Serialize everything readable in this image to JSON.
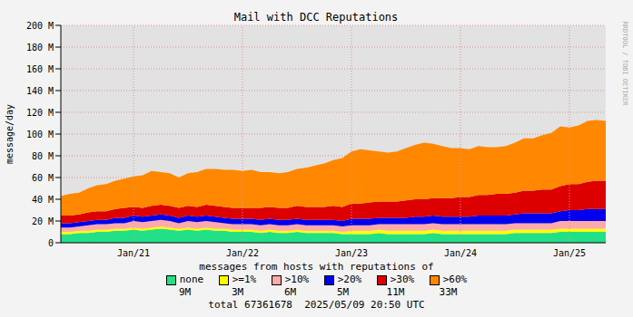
{
  "chart_data": {
    "type": "area",
    "title": "Mail with DCC Reputations",
    "y_label": "message/day",
    "legend_title": "messages from hosts with reputations of",
    "footer": "total 67361678  2025/05/09 20:50 UTC",
    "side_text": "RRDTOOL / TOBI OETIKER",
    "stacked": true,
    "grid": true,
    "legend": "bottom",
    "categories": [
      null,
      null,
      null,
      null,
      null,
      null,
      null,
      null,
      "Jan/21",
      null,
      null,
      null,
      null,
      null,
      null,
      null,
      null,
      null,
      null,
      null,
      "Jan/22",
      null,
      null,
      null,
      null,
      null,
      null,
      null,
      null,
      null,
      null,
      null,
      "Jan/23",
      null,
      null,
      null,
      null,
      null,
      null,
      null,
      null,
      null,
      null,
      null,
      "Jan/24",
      null,
      null,
      null,
      null,
      null,
      null,
      null,
      null,
      null,
      null,
      null,
      "Jan/25",
      null,
      null,
      null,
      null
    ],
    "ylim": [
      0,
      200
    ],
    "yticks": [
      0,
      {
        "value": 20,
        "label": "20 M"
      },
      {
        "value": 40,
        "label": "40 M"
      },
      {
        "value": 60,
        "label": "60 M"
      },
      {
        "value": 80,
        "label": "80 M"
      },
      {
        "value": 100,
        "label": "100 M"
      },
      {
        "value": 120,
        "label": "120 M"
      },
      {
        "value": 140,
        "label": "140 M"
      },
      {
        "value": 160,
        "label": "160 M"
      },
      {
        "value": 180,
        "label": "180 M"
      },
      {
        "value": 200,
        "label": "200 M"
      }
    ],
    "series": [
      {
        "name": "none",
        "color": "#22e088",
        "legend_value": "9M",
        "values": [
          8,
          8,
          9,
          9,
          10,
          10,
          11,
          11,
          12,
          11,
          12,
          13,
          12,
          11,
          12,
          11,
          12,
          11,
          11,
          10,
          10,
          10,
          9,
          10,
          9,
          9,
          10,
          9,
          9,
          9,
          9,
          8,
          8,
          8,
          8,
          9,
          8,
          8,
          8,
          8,
          8,
          9,
          8,
          8,
          8,
          8,
          8,
          8,
          8,
          8,
          9,
          9,
          9,
          9,
          9,
          10,
          10,
          10,
          10,
          10,
          10
        ]
      },
      {
        "name": ">=1%",
        "color": "#ffff00",
        "legend_value": "3M",
        "values": [
          2,
          2,
          2,
          2,
          2,
          2,
          2,
          2,
          2,
          2,
          2,
          2,
          2,
          2,
          2,
          2,
          2,
          2,
          2,
          2,
          2,
          2,
          2,
          2,
          2,
          2,
          2,
          2,
          2,
          2,
          2,
          2,
          3,
          3,
          3,
          3,
          3,
          3,
          3,
          3,
          3,
          3,
          3,
          3,
          3,
          3,
          3,
          3,
          3,
          3,
          3,
          3,
          3,
          3,
          3,
          3,
          3,
          3,
          3,
          3,
          3
        ]
      },
      {
        "name": ">10%",
        "color": "#ffaaaa",
        "legend_value": "6M",
        "values": [
          4,
          4,
          4,
          5,
          5,
          5,
          5,
          5,
          6,
          6,
          6,
          6,
          6,
          5,
          6,
          6,
          6,
          6,
          5,
          5,
          5,
          5,
          5,
          5,
          5,
          5,
          5,
          5,
          5,
          5,
          5,
          5,
          5,
          5,
          5,
          5,
          6,
          6,
          6,
          6,
          6,
          6,
          6,
          6,
          6,
          6,
          6,
          6,
          6,
          6,
          6,
          6,
          6,
          6,
          6,
          7,
          7,
          7,
          7,
          7,
          7
        ]
      },
      {
        "name": ">20%",
        "color": "#0000ee",
        "legend_value": "5M",
        "values": [
          4,
          4,
          4,
          4,
          4,
          4,
          5,
          5,
          5,
          5,
          5,
          5,
          5,
          5,
          5,
          5,
          5,
          5,
          5,
          5,
          5,
          5,
          5,
          5,
          5,
          5,
          5,
          5,
          5,
          5,
          5,
          5,
          6,
          6,
          6,
          6,
          6,
          6,
          6,
          7,
          7,
          7,
          7,
          7,
          7,
          7,
          8,
          8,
          8,
          8,
          8,
          9,
          9,
          9,
          9,
          9,
          10,
          10,
          11,
          11,
          11
        ]
      },
      {
        "name": ">30%",
        "color": "#dd0000",
        "legend_value": "11M",
        "values": [
          7,
          7,
          7,
          8,
          8,
          8,
          8,
          9,
          8,
          8,
          9,
          9,
          9,
          9,
          9,
          9,
          10,
          10,
          10,
          10,
          10,
          10,
          11,
          11,
          11,
          11,
          12,
          12,
          12,
          12,
          13,
          13,
          14,
          14,
          15,
          15,
          15,
          15,
          16,
          16,
          16,
          16,
          17,
          17,
          18,
          18,
          19,
          19,
          20,
          20,
          20,
          21,
          21,
          22,
          22,
          23,
          24,
          24,
          25,
          26,
          26
        ]
      },
      {
        "name": ">60%",
        "color": "#ff8800",
        "legend_value": "33M",
        "values": [
          18,
          20,
          20,
          22,
          24,
          25,
          26,
          27,
          28,
          30,
          32,
          30,
          30,
          28,
          30,
          32,
          33,
          34,
          34,
          35,
          34,
          35,
          33,
          32,
          32,
          33,
          34,
          36,
          38,
          40,
          42,
          45,
          48,
          50,
          48,
          46,
          45,
          46,
          48,
          50,
          52,
          50,
          48,
          46,
          45,
          44,
          45,
          44,
          43,
          44,
          46,
          48,
          48,
          50,
          52,
          55,
          52,
          54,
          56,
          56,
          55
        ]
      }
    ]
  }
}
